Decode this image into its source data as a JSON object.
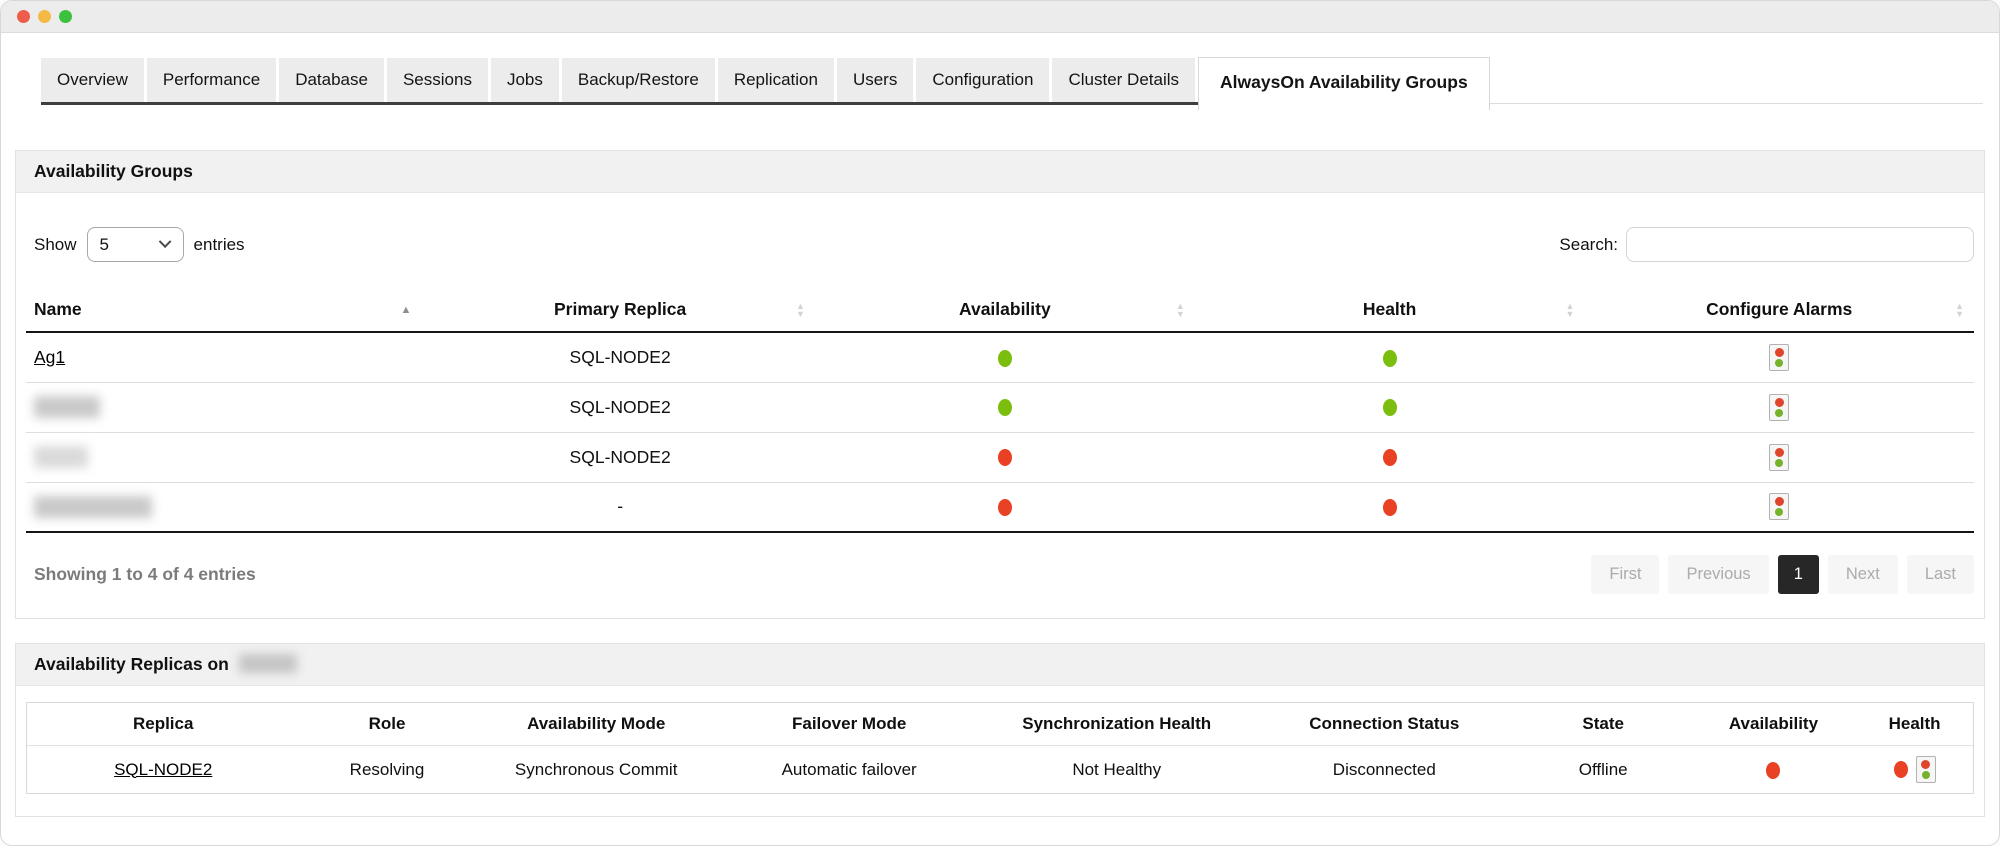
{
  "window": {
    "traffic_lights": [
      {
        "name": "close",
        "color": "#ee5c4c"
      },
      {
        "name": "minimize",
        "color": "#f5b945"
      },
      {
        "name": "maximize",
        "color": "#3cc13f"
      }
    ]
  },
  "tabs": [
    {
      "label": "Overview",
      "active": false
    },
    {
      "label": "Performance",
      "active": false
    },
    {
      "label": "Database",
      "active": false
    },
    {
      "label": "Sessions",
      "active": false
    },
    {
      "label": "Jobs",
      "active": false
    },
    {
      "label": "Backup/Restore",
      "active": false
    },
    {
      "label": "Replication",
      "active": false
    },
    {
      "label": "Users",
      "active": false
    },
    {
      "label": "Configuration",
      "active": false
    },
    {
      "label": "Cluster Details",
      "active": false
    },
    {
      "label": "AlwaysOn Availability Groups",
      "active": true
    }
  ],
  "groups_panel": {
    "title": "Availability Groups",
    "length_control": {
      "prefix": "Show",
      "value": "5",
      "suffix": "entries"
    },
    "search": {
      "label": "Search:",
      "value": ""
    },
    "columns": [
      {
        "label": "Name",
        "sort": "asc"
      },
      {
        "label": "Primary Replica",
        "sort": "none"
      },
      {
        "label": "Availability",
        "sort": "none"
      },
      {
        "label": "Health",
        "sort": "none"
      },
      {
        "label": "Configure Alarms",
        "sort": "none"
      }
    ],
    "rows": [
      {
        "name": "Ag1",
        "redacted": false,
        "redact_size": "",
        "primary_replica": "SQL-NODE2",
        "availability": "green",
        "health": "green"
      },
      {
        "name": "",
        "redacted": true,
        "redact_size": "md",
        "primary_replica": "SQL-NODE2",
        "availability": "green",
        "health": "green"
      },
      {
        "name": "",
        "redacted": true,
        "redact_size": "sm",
        "primary_replica": "SQL-NODE2",
        "availability": "red",
        "health": "red"
      },
      {
        "name": "",
        "redacted": true,
        "redact_size": "lg",
        "primary_replica": "-",
        "availability": "red",
        "health": "red"
      }
    ],
    "summary": "Showing 1 to 4 of 4 entries",
    "pagination": {
      "first": "First",
      "previous": "Previous",
      "current": "1",
      "next": "Next",
      "last": "Last"
    }
  },
  "replicas_panel": {
    "title": "Availability Replicas on",
    "title_redacted": true,
    "columns": [
      "Replica",
      "Role",
      "Availability Mode",
      "Failover Mode",
      "Synchronization Health",
      "Connection Status",
      "State",
      "Availability",
      "Health"
    ],
    "rows": [
      {
        "replica": "SQL-NODE2",
        "role": "Resolving",
        "availability_mode": "Synchronous Commit",
        "failover_mode": "Automatic failover",
        "synchronization_health": "Not Healthy",
        "connection_status": "Disconnected",
        "state": "Offline",
        "availability": "red",
        "health": "red"
      }
    ]
  },
  "colors": {
    "status_green": "#7cbe0e",
    "status_red": "#e94123"
  }
}
